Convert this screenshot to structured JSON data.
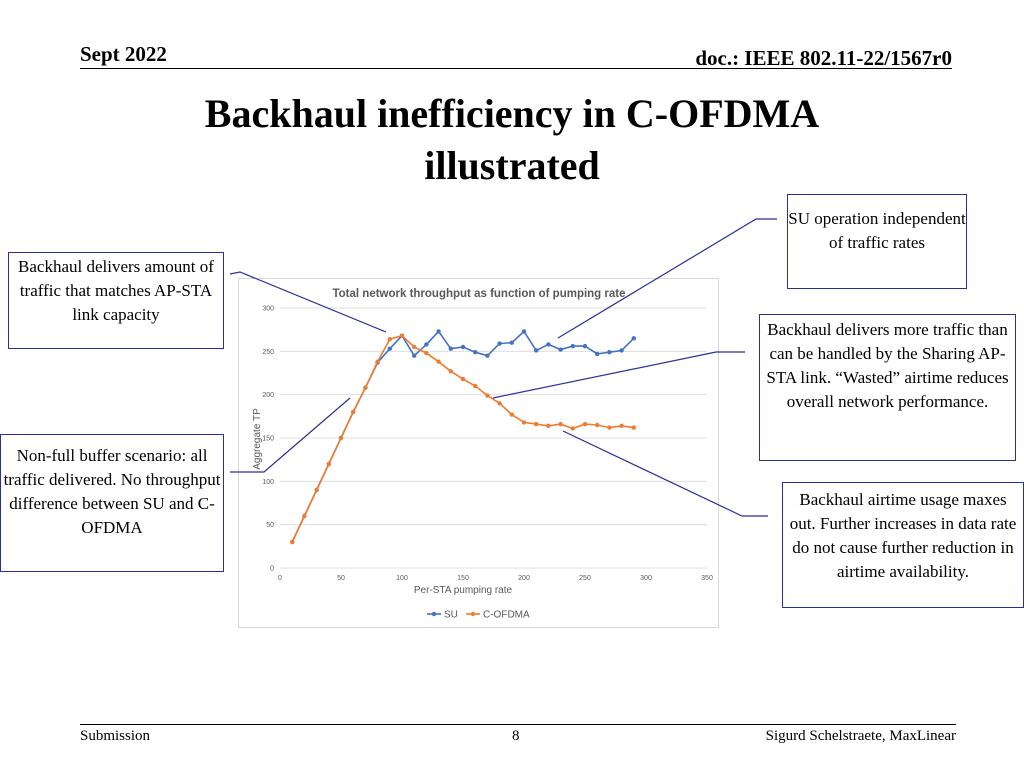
{
  "header": {
    "date": "Sept 2022",
    "doc": "doc.: IEEE 802.11-22/1567r0"
  },
  "title": {
    "line1": "Backhaul inefficiency in C-OFDMA",
    "line2": "illustrated"
  },
  "callouts": {
    "backhaul_matches": "Backhaul delivers amount of traffic that matches AP-STA link capacity",
    "non_full_buffer": "Non-full buffer scenario: all traffic delivered. No throughput difference between SU and C-OFDMA",
    "su_operation": "SU operation independent of traffic rates",
    "backhaul_more": "Backhaul delivers more traffic than can be handled by the Sharing AP-STA link. “Wasted” airtime reduces overall network performance.",
    "backhaul_airtime": "Backhaul airtime usage maxes out. Further increases in data rate do not cause further reduction in airtime availability."
  },
  "colors": {
    "su": "#4472c4",
    "cofdma": "#ed7d31",
    "callout_border": "#2c2f9a",
    "connector": "#2c2f9a",
    "grid": "#d9d9d9",
    "axis_text": "#595959"
  },
  "chart_data": {
    "type": "line",
    "title": "Total network throughput as function of pumping rate",
    "xlabel": "Per-STA pumping rate",
    "ylabel": "Aggregate TP",
    "xlim": [
      0,
      350
    ],
    "ylim": [
      0,
      300
    ],
    "xticks": [
      0,
      50,
      100,
      150,
      200,
      250,
      300,
      350
    ],
    "yticks": [
      0,
      50,
      100,
      150,
      200,
      250,
      300
    ],
    "grid": "horizontal",
    "legend": "bottom",
    "series": [
      {
        "name": "SU",
        "color": "#4472c4",
        "x": [
          10,
          20,
          30,
          40,
          50,
          60,
          70,
          80,
          90,
          100,
          110,
          120,
          130,
          140,
          150,
          160,
          170,
          180,
          190,
          200,
          210,
          220,
          230,
          240,
          250,
          260,
          270,
          280,
          290
        ],
        "y": [
          30,
          60,
          90,
          120,
          150,
          180,
          208,
          237,
          253,
          268,
          245,
          258,
          273,
          253,
          255,
          249,
          245,
          259,
          260,
          273,
          251,
          258,
          252,
          256,
          256,
          247,
          249,
          251,
          265
        ]
      },
      {
        "name": "C-OFDMA",
        "color": "#ed7d31",
        "x": [
          10,
          20,
          30,
          40,
          50,
          60,
          70,
          80,
          90,
          100,
          110,
          120,
          130,
          140,
          150,
          160,
          170,
          180,
          190,
          200,
          210,
          220,
          230,
          240,
          250,
          260,
          270,
          280,
          290
        ],
        "y": [
          30,
          60,
          90,
          120,
          150,
          180,
          208,
          238,
          264,
          268,
          255,
          248,
          238,
          227,
          218,
          210,
          199,
          190,
          177,
          168,
          166,
          164,
          166,
          161,
          166,
          165,
          162,
          164,
          162
        ]
      }
    ]
  },
  "footer": {
    "left": "Submission",
    "page": "8",
    "right": "Sigurd Schelstraete, MaxLinear"
  }
}
